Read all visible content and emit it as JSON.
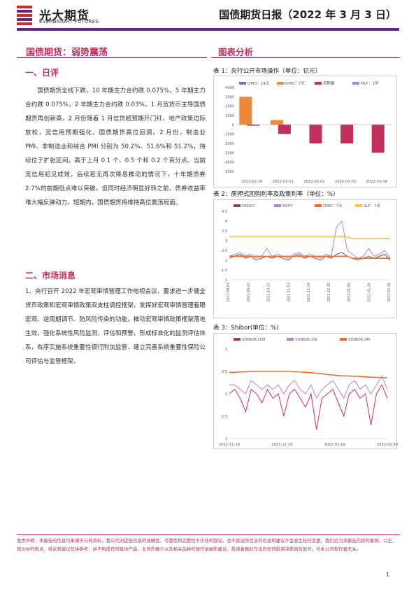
{
  "header": {
    "logo_cn": "光大期货",
    "logo_en": "EVERBRIGHT FUTURES",
    "report_title": "国债期货日报（2022 年 3 月 3 日）",
    "brand_color": "#5a2a84"
  },
  "left": {
    "main_title": "国债期货：弱势震荡",
    "section1_title": "一、日评",
    "section1_paragraph": "国债期货全线下跌，10 年期主力合约跌 0.075%，5 年期主力合约跌 0.075%，2 年期主力合约跌 0.03%。1 月宽货币主导国债期货再创新高，2 月份随着 1 月信贷超预期开门红，地产政策边际放松，宽信用预期强化，国债期货高位回调。2 月份，制造业 PMI、非制造业和综合 PMI 分别为 50.2%、51.6%和 51.2%，持续位于扩张区间，高于上月 0.1 个、0.5 个和 0.2 个百分点。当前宽信用初见成效，后续若无再次降息推动的情况下，十年期债券 2.7%的前期低点难以突破。但同时经济明显好转之前，债券收益率难大幅反弹动力。短期内，国债期货将维持高位震荡局面。",
    "section2_title": "二、市场消息",
    "section2_paragraph": "1、央行召开 2022 年宏观审慎管理工作电视会议，要求进一步健全货币政策和宏观审慎政策双支柱调控框架，发挥好宏观审慎管理着眼宏观、逆周期调节、防风险传染的功能，推动宏观审慎政策框架落地生效，强化系统性风险监测、评估和预警，形成标准化的监测评估体系，有序实施系统重要性银行附加监管，建立完善系统重要性保险公司评估与监管框架。"
  },
  "right": {
    "heading": "图表分析"
  },
  "charts": {
    "chart1": {
      "caption": "表 1：央行公开市场操作（单位：亿元）",
      "legend": [
        "OMO：14天",
        "OMO：7天",
        "到期量",
        "MLF：1年"
      ],
      "colors": [
        "#7a6fbf",
        "#f0883a",
        "#c0305a",
        "#b87fd0"
      ],
      "y_ticks": [
        "4000",
        "3000",
        "2000",
        "1000",
        "0",
        "-1000",
        "-2000",
        "-3000",
        "-4000",
        "-5000"
      ],
      "x_ticks": [
        "2022-02-28",
        "2022-03-01",
        "2022-03-02",
        "2022-03-03",
        "2022-03-04"
      ]
    },
    "chart2": {
      "caption": "表 2：质押式回购利率及政策利率（单位：%）",
      "legend": [
        "DR007",
        "R007",
        "OMO：7天",
        "SLF：7天"
      ],
      "colors": [
        "#8a4a3a",
        "#b87fd0",
        "#f06a2a",
        "#f5c242"
      ],
      "y_ticks": [
        "4.5",
        "4",
        "3.5",
        "3",
        "2.5",
        "2",
        "1.5",
        "1"
      ],
      "x_ticks": [
        "2021-09-01",
        "2021-09-22",
        "2021-10-13",
        "2021-11-03",
        "2021-11-24",
        "2021-12-15",
        "2022-01-05",
        "2022-01-26",
        "2022-02-16"
      ]
    },
    "chart3": {
      "caption": "表 3：Shibor(单位：%)",
      "legend": [
        "SHIBOR:O/N",
        "SHIBOR:1W",
        "SHIBOR:3M"
      ],
      "colors": [
        "#c0305a",
        "#b87fd0",
        "#f06a2a"
      ],
      "y_ticks": [
        "3",
        "2.5",
        "2",
        "1.5",
        "1"
      ],
      "x_ticks": [
        "2021-11-19",
        "2021-12-19",
        "2022-01-19",
        "2022-02-19"
      ]
    }
  },
  "chart_data": [
    {
      "type": "bar",
      "title": "表 1：央行公开市场操作（单位：亿元）",
      "categories": [
        "2022-02-28",
        "2022-03-01",
        "2022-03-02",
        "2022-03-03",
        "2022-03-04"
      ],
      "ylim": [
        -5000,
        4000
      ],
      "series": [
        {
          "name": "OMO：14天",
          "values": [
            0,
            0,
            0,
            0,
            0
          ]
        },
        {
          "name": "OMO：7天",
          "values": [
            3000,
            500,
            0,
            0,
            0
          ]
        },
        {
          "name": "到期量",
          "values": [
            -100,
            -1000,
            -2000,
            -2000,
            -3000
          ]
        },
        {
          "name": "MLF：1年",
          "values": [
            0,
            0,
            0,
            0,
            0
          ]
        }
      ]
    },
    {
      "type": "line",
      "title": "表 2：质押式回购利率及政策利率（单位：%）",
      "ylim": [
        1,
        4.5
      ],
      "x_ticks": [
        "2021-09-01",
        "2021-09-22",
        "2021-10-13",
        "2021-11-03",
        "2021-11-24",
        "2021-12-15",
        "2022-01-05",
        "2022-01-26",
        "2022-02-16"
      ],
      "series": [
        {
          "name": "DR007",
          "values": [
            2.1,
            2.2,
            2.3,
            2.1,
            2.2,
            2.0,
            2.1,
            2.2,
            2.1,
            2.2,
            2.1,
            2.0,
            2.2,
            2.3,
            2.1,
            2.2,
            2.1,
            2.0,
            2.2,
            2.1,
            2.3,
            2.4,
            2.2,
            2.1,
            2.0,
            2.1,
            2.2,
            2.1,
            2.2,
            2.3,
            2.0
          ]
        },
        {
          "name": "R007",
          "values": [
            2.2,
            2.3,
            2.4,
            2.2,
            2.3,
            2.1,
            2.2,
            2.6,
            2.2,
            2.3,
            2.2,
            2.1,
            2.3,
            2.4,
            2.2,
            2.3,
            2.2,
            2.1,
            2.3,
            2.2,
            3.7,
            4.0,
            2.5,
            2.3,
            2.1,
            2.2,
            2.6,
            2.2,
            2.3,
            2.5,
            2.1
          ]
        },
        {
          "name": "OMO：7天",
          "values": [
            2.2,
            2.2,
            2.2,
            2.2,
            2.2,
            2.2,
            2.2,
            2.2,
            2.2,
            2.2,
            2.2,
            2.2,
            2.2,
            2.2,
            2.2,
            2.2,
            2.2,
            2.2,
            2.2,
            2.2,
            2.2,
            2.2,
            2.2,
            2.1,
            2.1,
            2.1,
            2.1,
            2.1,
            2.1,
            2.1,
            2.1
          ]
        },
        {
          "name": "SLF：7天",
          "values": [
            3.2,
            3.2,
            3.2,
            3.2,
            3.2,
            3.2,
            3.2,
            3.2,
            3.2,
            3.2,
            3.2,
            3.2,
            3.2,
            3.2,
            3.2,
            3.2,
            3.2,
            3.2,
            3.2,
            3.2,
            3.2,
            3.2,
            3.2,
            3.1,
            3.1,
            3.1,
            3.1,
            3.1,
            3.1,
            3.1,
            3.1
          ]
        }
      ]
    },
    {
      "type": "line",
      "title": "表 3：Shibor(单位：%)",
      "ylim": [
        1,
        3
      ],
      "x_ticks": [
        "2021-11-19",
        "2021-12-19",
        "2022-01-19",
        "2022-02-19"
      ],
      "series": [
        {
          "name": "SHIBOR:O/N",
          "values": [
            2.0,
            2.1,
            1.9,
            1.6,
            2.1,
            2.0,
            1.8,
            2.1,
            1.9,
            2.0,
            1.5,
            2.0,
            2.1,
            1.9,
            1.7,
            2.0,
            1.2,
            1.9,
            2.0,
            2.1,
            1.8,
            1.5,
            2.0,
            2.1,
            1.9,
            2.0,
            1.3,
            2.0,
            2.2,
            1.9
          ]
        },
        {
          "name": "SHIBOR:1W",
          "values": [
            2.2,
            2.2,
            2.1,
            2.0,
            2.3,
            2.2,
            2.1,
            2.2,
            2.1,
            2.2,
            2.0,
            2.2,
            2.3,
            2.1,
            2.0,
            2.2,
            1.9,
            2.1,
            2.2,
            2.3,
            2.1,
            1.9,
            2.2,
            2.3,
            2.1,
            2.2,
            2.0,
            2.2,
            2.4,
            2.1
          ]
        },
        {
          "name": "SHIBOR:3M",
          "values": [
            2.48,
            2.48,
            2.49,
            2.49,
            2.5,
            2.5,
            2.5,
            2.5,
            2.5,
            2.5,
            2.5,
            2.5,
            2.49,
            2.49,
            2.48,
            2.47,
            2.46,
            2.45,
            2.43,
            2.42,
            2.41,
            2.4,
            2.4,
            2.39,
            2.39,
            2.38,
            2.37,
            2.37,
            2.36,
            2.36
          ]
        }
      ]
    }
  ],
  "footer": {
    "disclaimer": "免责声明：本报告的信息均来源于公开资料，我公司对这些信息的准确性、可靠性和完整性不作任何保证，也不保证所包含的信息和建议不会发生任何变更。我们已力求报告内容的客观、公正，但文中的观点、结论和建议仅供参考，并不构成任何具体产品、业务的推介以及相关品种的操作依据和建议。投资者据此作出的任何投资决策自负盈亏，与本公司和作者无关。",
    "page_number": "1"
  }
}
